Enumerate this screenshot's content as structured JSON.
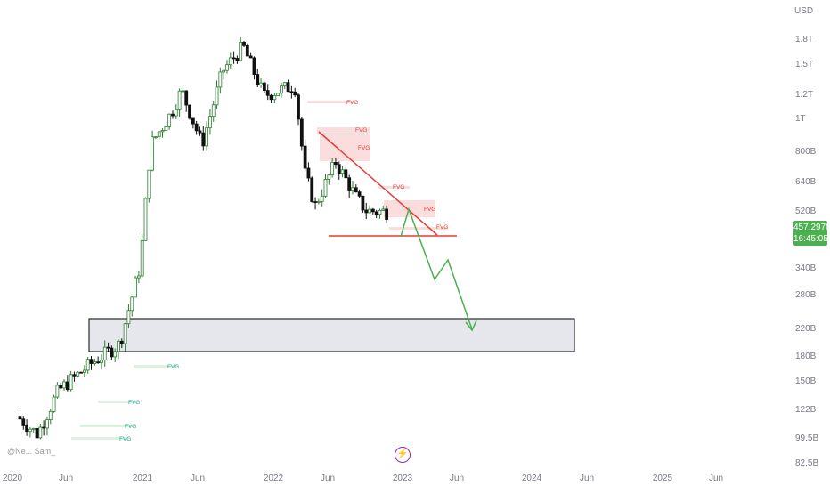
{
  "chart_data": {
    "type": "candlestick",
    "currency": "USD",
    "y_axis_ticks": [
      "1.8T",
      "1.5T",
      "1.2T",
      "1T",
      "800B",
      "640B",
      "520B",
      "400B",
      "340B",
      "280B",
      "220B",
      "180B",
      "150B",
      "122B",
      "99.5B",
      "82.5B"
    ],
    "x_axis_ticks": [
      "2020",
      "Jun",
      "2021",
      "Jun",
      "2022",
      "Jun",
      "2023",
      "Jun",
      "2024",
      "Jun",
      "2025",
      "Jun"
    ],
    "scale": "log",
    "last_price": "457.2978",
    "countdown": "16:45:05",
    "price_series_approx": [
      {
        "date": "2020-01",
        "close": 90
      },
      {
        "date": "2020-03",
        "close": 78
      },
      {
        "date": "2020-05",
        "close": 110
      },
      {
        "date": "2020-08",
        "close": 135
      },
      {
        "date": "2020-11",
        "close": 160
      },
      {
        "date": "2021-01",
        "close": 300
      },
      {
        "date": "2021-02",
        "close": 780
      },
      {
        "date": "2021-04",
        "close": 1000
      },
      {
        "date": "2021-05",
        "close": 1200
      },
      {
        "date": "2021-07",
        "close": 780
      },
      {
        "date": "2021-09",
        "close": 1400
      },
      {
        "date": "2021-11",
        "close": 1700
      },
      {
        "date": "2022-01",
        "close": 1150
      },
      {
        "date": "2022-04",
        "close": 1250
      },
      {
        "date": "2022-05",
        "close": 620
      },
      {
        "date": "2022-06",
        "close": 480
      },
      {
        "date": "2022-08",
        "close": 680
      },
      {
        "date": "2022-10",
        "close": 510
      },
      {
        "date": "2022-11",
        "close": 460
      },
      {
        "date": "2023-01",
        "close": 457
      }
    ],
    "annotations": {
      "fvg_labels": [
        "FVG",
        "FVG",
        "FVG",
        "FVG",
        "FVG",
        "FVG",
        "FVG",
        "FVG",
        "FVG",
        "FVG"
      ],
      "support_line": "horizontal red line near 465B",
      "resistance_line": "descending red trendline",
      "target_zone": "gray box 190B–245B",
      "projection": "green zig-zag arrow down to target zone"
    }
  },
  "ui": {
    "watermark": "@Ne... Sam_",
    "bolt_icon": "⚡",
    "colors": {
      "up": "#26a69a",
      "down": "#000000",
      "fvg_red": "#e53935",
      "fvg_green": "#43a047",
      "price_tag": "#4caf50"
    }
  }
}
